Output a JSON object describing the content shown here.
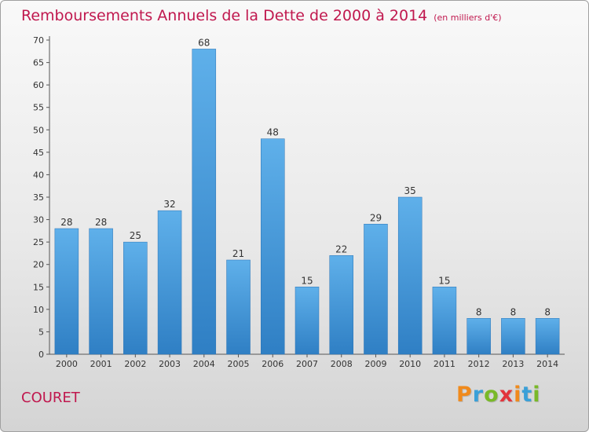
{
  "chart_data": {
    "type": "bar",
    "title": "Remboursements Annuels de la Dette de 2000 à 2014",
    "subtitle": "(en milliers d'€)",
    "xlabel": "",
    "ylabel": "",
    "categories": [
      "2000",
      "2001",
      "2002",
      "2003",
      "2004",
      "2005",
      "2006",
      "2007",
      "2008",
      "2009",
      "2010",
      "2011",
      "2012",
      "2013",
      "2014"
    ],
    "values": [
      28,
      28,
      25,
      32,
      68,
      21,
      48,
      15,
      22,
      29,
      35,
      15,
      8,
      8,
      8
    ],
    "ylim": [
      0,
      70
    ],
    "yticks": [
      0,
      5,
      10,
      15,
      20,
      25,
      30,
      35,
      40,
      45,
      50,
      55,
      60,
      65,
      70
    ],
    "grid": false,
    "legend": "none",
    "bar_color": "#4d9fe0"
  },
  "footer": {
    "commune": "COURET"
  },
  "brand": {
    "name": "Proxiti",
    "letters": [
      "P",
      "r",
      "o",
      "x",
      "i",
      "t",
      "i"
    ],
    "letter_colors": [
      "#f08a1c",
      "#3aa0d8",
      "#79b928",
      "#e2343c",
      "#f08a1c",
      "#3aa0d8",
      "#79b928"
    ]
  }
}
